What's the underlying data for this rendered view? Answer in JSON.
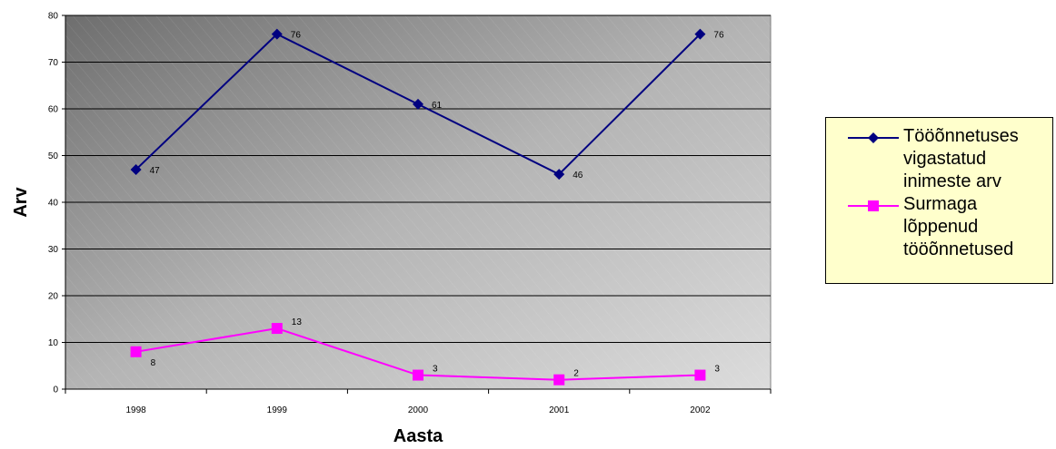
{
  "chart_data": {
    "type": "line",
    "categories": [
      "1998",
      "1999",
      "2000",
      "2001",
      "2002"
    ],
    "series": [
      {
        "name": "Tööõnnetuses\nvigastatud\ninimeste arv",
        "values": [
          47,
          76,
          61,
          46,
          76
        ],
        "color": "#000080",
        "marker": "diamond"
      },
      {
        "name": "Surmaga\nlõppenud\ntööõnnetused",
        "values": [
          8,
          13,
          3,
          2,
          3
        ],
        "color": "#ff00ff",
        "marker": "square"
      }
    ],
    "xlabel": "Aasta",
    "ylabel": "Arv",
    "ylim": [
      0,
      80
    ],
    "yticks": [
      0,
      10,
      20,
      30,
      40,
      50,
      60,
      70,
      80
    ],
    "grid": true,
    "legend_position": "right"
  }
}
